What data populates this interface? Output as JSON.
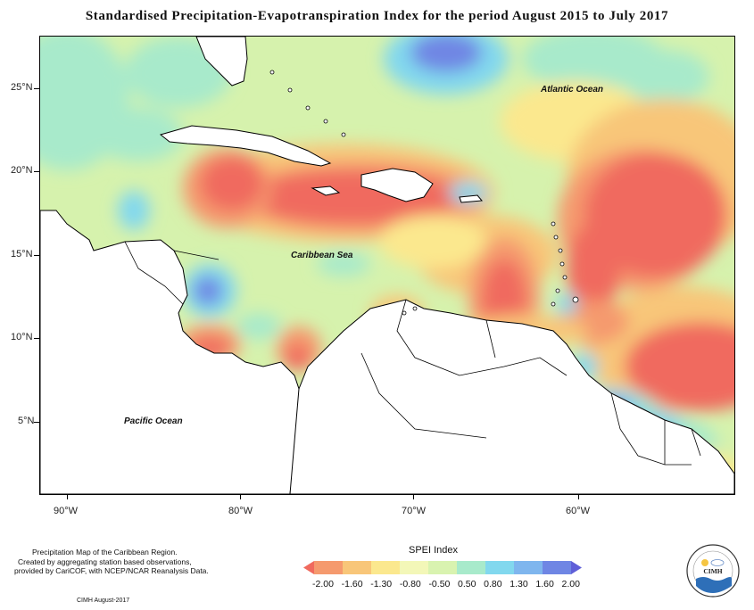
{
  "title": "Standardised Precipitation-Evapotranspiration Index for the period August 2015 to July 2017",
  "map": {
    "x_ticks": [
      "90°W",
      "80°W",
      "70°W",
      "60°W"
    ],
    "y_ticks": [
      "25°N",
      "20°N",
      "15°N",
      "10°N",
      "5°N"
    ],
    "labels": {
      "atlantic": "Atlantic Ocean",
      "caribbean": "Caribbean Sea",
      "pacific": "Pacific Ocean"
    }
  },
  "legend": {
    "title": "SPEI Index",
    "values": [
      "-2.00",
      "-1.60",
      "-1.30",
      "-0.80",
      "-0.50",
      "0.50",
      "0.80",
      "1.30",
      "1.60",
      "2.00"
    ],
    "colors": [
      "#f06a5e",
      "#f59a6e",
      "#f8c679",
      "#fbe88e",
      "#f3f7b8",
      "#d9f3b0",
      "#a8eacb",
      "#82d8ee",
      "#7fb6ee",
      "#6f86e4",
      "#5f5fd8"
    ]
  },
  "credit": {
    "line1": "Precipitation Map of the Caribbean Region.",
    "line2": "Created by aggregating station based observations,",
    "line3": "provided by CariCOF, with NCEP/NCAR Reanalysis Data.",
    "date": "CIMH August-2017"
  },
  "logo": {
    "text": "CIMH"
  }
}
